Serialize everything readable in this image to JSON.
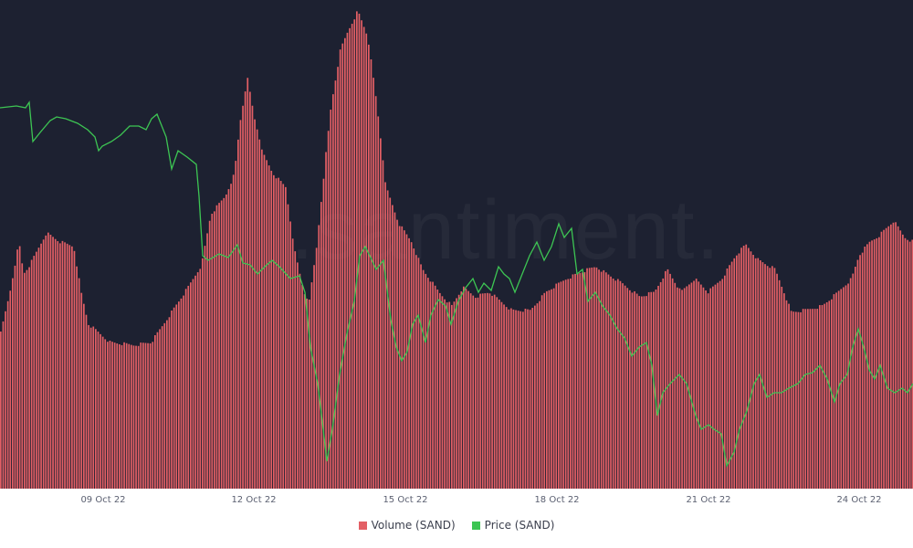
{
  "chart_data": {
    "type": "bar",
    "watermark": ".santiment.",
    "x_ticks": [
      "09 Oct 22",
      "12 Oct 22",
      "15 Oct 22",
      "18 Oct 22",
      "21 Oct 22",
      "24 Oct 22"
    ],
    "legend_position": "bottom-center",
    "grid": false,
    "background_color": "#1d2131",
    "series": [
      {
        "name": "Volume (SAND)",
        "type": "bar",
        "color": "#e35f65",
        "points": [
          [
            0,
            365
          ],
          [
            10,
            320
          ],
          [
            20,
            265
          ],
          [
            25,
            300
          ],
          [
            32,
            290
          ],
          [
            50,
            255
          ],
          [
            65,
            265
          ],
          [
            80,
            270
          ],
          [
            88,
            320
          ],
          [
            96,
            355
          ],
          [
            120,
            375
          ],
          [
            145,
            378
          ],
          [
            165,
            375
          ],
          [
            185,
            345
          ],
          [
            205,
            315
          ],
          [
            220,
            290
          ],
          [
            230,
            235
          ],
          [
            246,
            215
          ],
          [
            256,
            190
          ],
          [
            262,
            135
          ],
          [
            270,
            85
          ],
          [
            278,
            130
          ],
          [
            288,
            170
          ],
          [
            298,
            190
          ],
          [
            312,
            205
          ],
          [
            322,
            275
          ],
          [
            332,
            320
          ],
          [
            338,
            330
          ],
          [
            346,
            270
          ],
          [
            356,
            170
          ],
          [
            362,
            115
          ],
          [
            372,
            55
          ],
          [
            380,
            35
          ],
          [
            391,
            12
          ],
          [
            402,
            40
          ],
          [
            412,
            115
          ],
          [
            422,
            205
          ],
          [
            436,
            245
          ],
          [
            450,
            265
          ],
          [
            462,
            295
          ],
          [
            480,
            320
          ],
          [
            494,
            335
          ],
          [
            506,
            315
          ],
          [
            520,
            325
          ],
          [
            535,
            320
          ],
          [
            560,
            340
          ],
          [
            580,
            340
          ],
          [
            597,
            320
          ],
          [
            620,
            305
          ],
          [
            636,
            298
          ],
          [
            652,
            292
          ],
          [
            664,
            300
          ],
          [
            680,
            310
          ],
          [
            700,
            325
          ],
          [
            716,
            320
          ],
          [
            730,
            295
          ],
          [
            745,
            320
          ],
          [
            760,
            305
          ],
          [
            775,
            320
          ],
          [
            790,
            305
          ],
          [
            805,
            280
          ],
          [
            816,
            268
          ],
          [
            830,
            285
          ],
          [
            848,
            295
          ],
          [
            858,
            320
          ],
          [
            866,
            342
          ],
          [
            880,
            340
          ],
          [
            900,
            335
          ],
          [
            915,
            322
          ],
          [
            932,
            305
          ],
          [
            940,
            280
          ],
          [
            952,
            265
          ],
          [
            962,
            258
          ],
          [
            978,
            242
          ],
          [
            990,
            260
          ],
          [
            1000,
            265
          ]
        ]
      },
      {
        "name": "Price (SAND)",
        "type": "line",
        "color": "#3dc553",
        "points": [
          [
            0,
            118
          ],
          [
            18,
            116
          ],
          [
            28,
            118
          ],
          [
            32,
            112
          ],
          [
            36,
            155
          ],
          [
            44,
            145
          ],
          [
            55,
            132
          ],
          [
            62,
            128
          ],
          [
            72,
            130
          ],
          [
            85,
            135
          ],
          [
            96,
            142
          ],
          [
            104,
            150
          ],
          [
            108,
            165
          ],
          [
            112,
            160
          ],
          [
            122,
            155
          ],
          [
            132,
            148
          ],
          [
            142,
            138
          ],
          [
            152,
            138
          ],
          [
            160,
            142
          ],
          [
            166,
            130
          ],
          [
            172,
            125
          ],
          [
            182,
            150
          ],
          [
            188,
            185
          ],
          [
            195,
            165
          ],
          [
            205,
            172
          ],
          [
            215,
            180
          ],
          [
            218,
            215
          ],
          [
            222,
            280
          ],
          [
            228,
            285
          ],
          [
            240,
            278
          ],
          [
            250,
            282
          ],
          [
            260,
            268
          ],
          [
            266,
            288
          ],
          [
            274,
            290
          ],
          [
            282,
            300
          ],
          [
            290,
            292
          ],
          [
            298,
            285
          ],
          [
            306,
            292
          ],
          [
            318,
            305
          ],
          [
            328,
            302
          ],
          [
            334,
            320
          ],
          [
            340,
            380
          ],
          [
            348,
            420
          ],
          [
            354,
            470
          ],
          [
            358,
            505
          ],
          [
            364,
            470
          ],
          [
            372,
            410
          ],
          [
            380,
            365
          ],
          [
            388,
            330
          ],
          [
            394,
            280
          ],
          [
            400,
            270
          ],
          [
            406,
            282
          ],
          [
            412,
            295
          ],
          [
            420,
            285
          ],
          [
            428,
            350
          ],
          [
            434,
            380
          ],
          [
            440,
            395
          ],
          [
            446,
            385
          ],
          [
            452,
            355
          ],
          [
            458,
            345
          ],
          [
            466,
            375
          ],
          [
            472,
            345
          ],
          [
            480,
            328
          ],
          [
            488,
            335
          ],
          [
            494,
            355
          ],
          [
            502,
            330
          ],
          [
            510,
            315
          ],
          [
            518,
            305
          ],
          [
            524,
            320
          ],
          [
            530,
            310
          ],
          [
            538,
            318
          ],
          [
            546,
            292
          ],
          [
            552,
            300
          ],
          [
            558,
            305
          ],
          [
            564,
            320
          ],
          [
            572,
            300
          ],
          [
            580,
            280
          ],
          [
            588,
            265
          ],
          [
            596,
            285
          ],
          [
            604,
            270
          ],
          [
            612,
            245
          ],
          [
            618,
            260
          ],
          [
            626,
            250
          ],
          [
            632,
            300
          ],
          [
            638,
            295
          ],
          [
            644,
            330
          ],
          [
            652,
            320
          ],
          [
            660,
            335
          ],
          [
            668,
            345
          ],
          [
            676,
            360
          ],
          [
            684,
            370
          ],
          [
            692,
            390
          ],
          [
            700,
            380
          ],
          [
            708,
            375
          ],
          [
            714,
            400
          ],
          [
            720,
            455
          ],
          [
            726,
            430
          ],
          [
            734,
            420
          ],
          [
            744,
            410
          ],
          [
            752,
            420
          ],
          [
            762,
            455
          ],
          [
            768,
            470
          ],
          [
            776,
            465
          ],
          [
            782,
            470
          ],
          [
            790,
            475
          ],
          [
            796,
            510
          ],
          [
            804,
            495
          ],
          [
            810,
            470
          ],
          [
            818,
            450
          ],
          [
            826,
            420
          ],
          [
            832,
            410
          ],
          [
            840,
            435
          ],
          [
            848,
            430
          ],
          [
            856,
            430
          ],
          [
            864,
            425
          ],
          [
            874,
            420
          ],
          [
            882,
            410
          ],
          [
            890,
            408
          ],
          [
            898,
            400
          ],
          [
            906,
            415
          ],
          [
            914,
            440
          ],
          [
            920,
            420
          ],
          [
            928,
            410
          ],
          [
            934,
            380
          ],
          [
            940,
            360
          ],
          [
            946,
            380
          ],
          [
            952,
            405
          ],
          [
            958,
            415
          ],
          [
            964,
            400
          ],
          [
            972,
            425
          ],
          [
            980,
            430
          ],
          [
            988,
            425
          ],
          [
            994,
            430
          ],
          [
            1000,
            420
          ]
        ]
      }
    ]
  }
}
